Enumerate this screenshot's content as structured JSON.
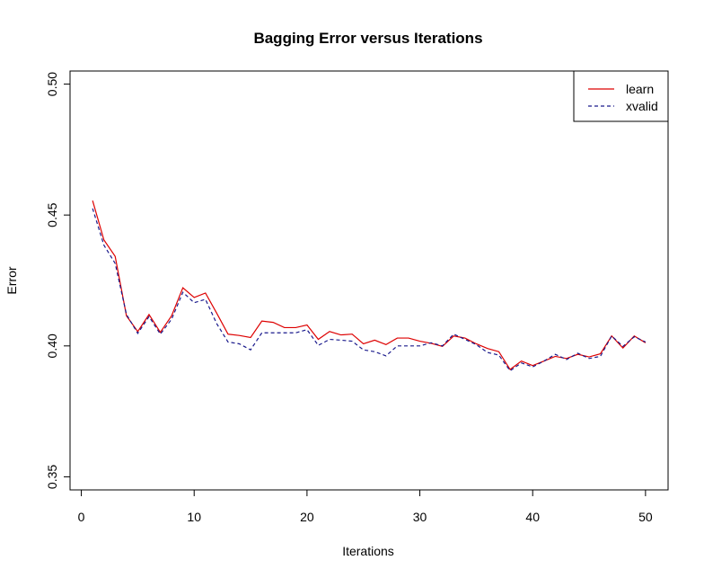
{
  "chart_data": {
    "type": "line",
    "title": "Bagging Error versus Iterations",
    "xlabel": "Iterations",
    "ylabel": "Error",
    "xlim": [
      -1,
      52
    ],
    "ylim": [
      0.345,
      0.505
    ],
    "x_ticks": [
      0,
      10,
      20,
      30,
      40,
      50
    ],
    "x_tick_labels": [
      "0",
      "10",
      "20",
      "30",
      "40",
      "50"
    ],
    "y_ticks": [
      0.35,
      0.4,
      0.45,
      0.5
    ],
    "y_tick_labels": [
      "0.35",
      "0.40",
      "0.45",
      "0.50"
    ],
    "grid": false,
    "legend_position": "top-right",
    "x": [
      1,
      2,
      3,
      4,
      5,
      6,
      7,
      8,
      9,
      10,
      11,
      12,
      13,
      14,
      15,
      16,
      17,
      18,
      19,
      20,
      21,
      22,
      23,
      24,
      25,
      26,
      27,
      28,
      29,
      30,
      31,
      32,
      33,
      34,
      35,
      36,
      37,
      38,
      39,
      40,
      41,
      42,
      43,
      44,
      45,
      46,
      47,
      48,
      49,
      50
    ],
    "series": [
      {
        "name": "learn",
        "color": "#dd0000",
        "dash": "solid",
        "values": [
          0.4555,
          0.4405,
          0.4342,
          0.4115,
          0.4055,
          0.412,
          0.4052,
          0.4115,
          0.4222,
          0.4185,
          0.4202,
          0.4125,
          0.4045,
          0.404,
          0.4032,
          0.4095,
          0.409,
          0.407,
          0.407,
          0.408,
          0.4025,
          0.4055,
          0.4042,
          0.4045,
          0.4008,
          0.4022,
          0.4005,
          0.403,
          0.403,
          0.4018,
          0.401,
          0.3998,
          0.4038,
          0.403,
          0.4008,
          0.399,
          0.3978,
          0.391,
          0.3942,
          0.3925,
          0.3942,
          0.396,
          0.3952,
          0.3968,
          0.3958,
          0.397,
          0.4038,
          0.3992,
          0.4038,
          0.4012
        ]
      },
      {
        "name": "xvalid",
        "color": "#1a1a8c",
        "dash": "dashed",
        "values": [
          0.4525,
          0.4385,
          0.4315,
          0.412,
          0.4048,
          0.4112,
          0.4045,
          0.4102,
          0.4205,
          0.4165,
          0.4178,
          0.4085,
          0.4015,
          0.4008,
          0.3985,
          0.405,
          0.405,
          0.405,
          0.405,
          0.4062,
          0.4002,
          0.4025,
          0.4022,
          0.4018,
          0.3985,
          0.3978,
          0.3962,
          0.4,
          0.4,
          0.4,
          0.4012,
          0.4,
          0.4045,
          0.4025,
          0.4005,
          0.3975,
          0.3965,
          0.3905,
          0.3935,
          0.392,
          0.3942,
          0.3968,
          0.3948,
          0.3972,
          0.3952,
          0.396,
          0.4038,
          0.3998,
          0.4035,
          0.4015
        ]
      }
    ]
  }
}
